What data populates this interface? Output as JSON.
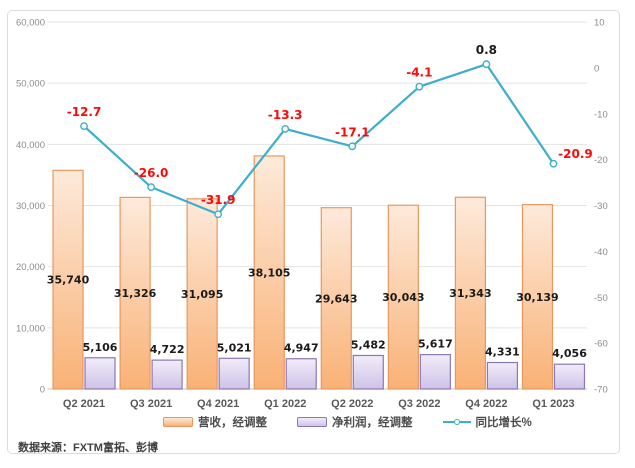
{
  "source": "数据来源：FXTM富拓、彭博",
  "chart_data": {
    "type": "combo-bar-line",
    "title": "",
    "categories": [
      "Q2 2021",
      "Q3 2021",
      "Q4 2021",
      "Q1 2022",
      "Q2 2022",
      "Q3 2022",
      "Q4 2022",
      "Q1 2023"
    ],
    "series": [
      {
        "name": "营收，经调整",
        "type": "bar",
        "axis": "left",
        "values": [
          35740,
          31326,
          31095,
          38105,
          29643,
          30043,
          31343,
          30139
        ]
      },
      {
        "name": "净利润，经调整",
        "type": "bar",
        "axis": "left",
        "values": [
          5106,
          4722,
          5021,
          4947,
          5482,
          5617,
          4331,
          4056
        ]
      },
      {
        "name": "同比增长%",
        "type": "line",
        "axis": "right",
        "values": [
          -12.7,
          -26.0,
          -31.9,
          -13.3,
          -17.1,
          -4.1,
          0.8,
          -20.9
        ]
      }
    ],
    "left_axis": {
      "min": 0,
      "max": 60000,
      "step": 10000
    },
    "right_axis": {
      "min": -70,
      "max": 10,
      "step": 10
    },
    "grid": true,
    "legend_position": "bottom",
    "colors": {
      "revenue_fill_top": "#fdeadb",
      "revenue_fill_bottom": "#f9b175",
      "revenue_border": "#e8985f",
      "profit_fill_top": "#f1edf9",
      "profit_fill_bottom": "#cfc2e8",
      "profit_border": "#8e76b4",
      "line": "#3daecb",
      "negative_label": "#fe0808",
      "positive_label": "#1a1a1a"
    }
  }
}
